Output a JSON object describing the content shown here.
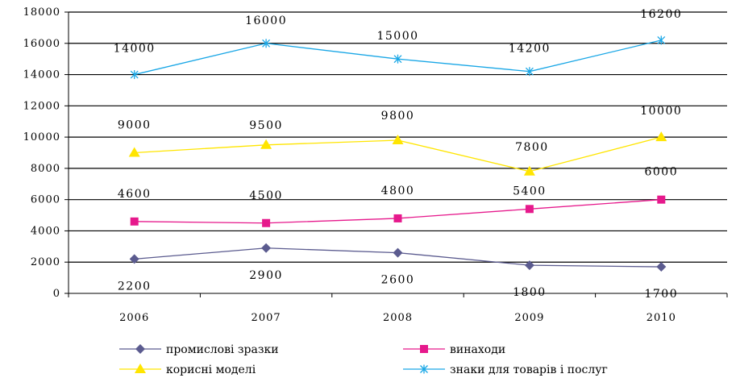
{
  "chart_data": {
    "type": "line",
    "title": "",
    "xlabel": "",
    "ylabel": "",
    "categories": [
      "2006",
      "2007",
      "2008",
      "2009",
      "2010"
    ],
    "ylim": [
      0,
      18000
    ],
    "yticks": [
      0,
      2000,
      4000,
      6000,
      8000,
      10000,
      12000,
      14000,
      16000,
      18000
    ],
    "grid": true,
    "legend": "bottom",
    "series": [
      {
        "name": "промислові зразки",
        "values": [
          2200,
          2900,
          2600,
          1800,
          1700
        ],
        "labels": [
          "2200",
          "2900",
          "2600",
          "1800",
          "1700"
        ],
        "color": "#5B5B8F",
        "marker": "diamond"
      },
      {
        "name": "винаходи",
        "values": [
          4600,
          4500,
          4800,
          5400,
          6000
        ],
        "labels": [
          "4600",
          "4500",
          "4800",
          "5400",
          "6000"
        ],
        "color": "#E6198C",
        "marker": "square"
      },
      {
        "name": "корисні моделі",
        "values": [
          9000,
          9500,
          9800,
          7800,
          10000
        ],
        "labels": [
          "9000",
          "9500",
          "9800",
          "7800",
          "10000"
        ],
        "color": "#FFE500",
        "marker": "triangle"
      },
      {
        "name": "знаки для товарів і послуг",
        "values": [
          14000,
          16000,
          15000,
          14200,
          16200
        ],
        "labels": [
          "14000",
          "16000",
          "15000",
          "14200",
          "16200"
        ],
        "color": "#1AA7E6",
        "marker": "star"
      }
    ]
  }
}
